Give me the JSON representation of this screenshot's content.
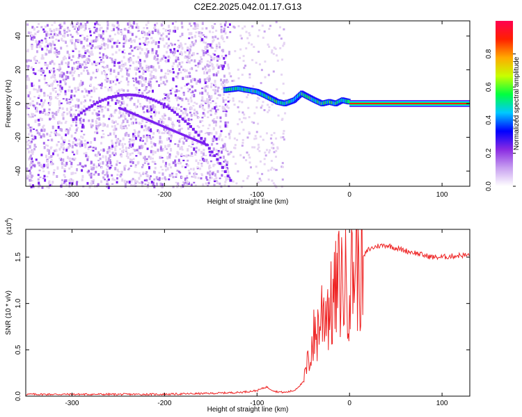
{
  "title": "C2E2.2025.042.01.17.G13",
  "colors": {
    "snr_line": "#ee2222",
    "axis": "#000000",
    "colormap": [
      "#f4eef8",
      "#e6d5f3",
      "#c9a6ee",
      "#a566ec",
      "#7a1ff0",
      "#1a10ff",
      "#00c8ff",
      "#00ff60",
      "#c8ff00",
      "#ffb000",
      "#ff2000",
      "#ff0040"
    ]
  },
  "chart_data": [
    {
      "type": "heatmap",
      "xlabel": "Height of straight line (km)",
      "ylabel": "Frequency (Hz)",
      "xlim": [
        -350,
        130
      ],
      "ylim": [
        -49,
        49
      ],
      "xticks": [
        -300,
        -200,
        -100,
        0,
        100
      ],
      "yticks": [
        -40,
        -20,
        0,
        20,
        40
      ],
      "colorbar": {
        "label": "Normalized spectral amplitude",
        "range": [
          0,
          1
        ],
        "ticks": [
          "0.0",
          "0.2",
          "0.4",
          "0.6",
          "0.8"
        ]
      },
      "features": {
        "noise_region_x": [
          -350,
          -130
        ],
        "sparse_region_x": [
          -130,
          -70
        ],
        "signal_track": [
          [
            -135,
            8
          ],
          [
            -120,
            9
          ],
          [
            -110,
            8
          ],
          [
            -100,
            7
          ],
          [
            -92,
            5
          ],
          [
            -85,
            3
          ],
          [
            -78,
            1
          ],
          [
            -70,
            0
          ],
          [
            -60,
            2
          ],
          [
            -52,
            6
          ],
          [
            -45,
            4
          ],
          [
            -38,
            2
          ],
          [
            -30,
            0
          ],
          [
            -22,
            1
          ],
          [
            -15,
            0
          ],
          [
            -8,
            2
          ],
          [
            0,
            1
          ],
          [
            5,
            0
          ],
          [
            10,
            0
          ],
          [
            130,
            0
          ]
        ],
        "carrier_start_x": 0,
        "carrier_frequency": 0
      }
    },
    {
      "type": "line",
      "xlabel": "Height of straight line (km)",
      "ylabel": "SNR (10 * v/v)",
      "y_multiplier": "(x10",
      "y_multiplier_exp": "4",
      "y_multiplier_close": ")",
      "xlim": [
        -350,
        130
      ],
      "ylim": [
        0,
        1.8
      ],
      "xticks": [
        -300,
        -200,
        -100,
        0,
        100
      ],
      "yticks": [
        "0.0",
        "0.5",
        "1.0",
        "1.5"
      ],
      "series": [
        {
          "x": [
            -350,
            -300,
            -250,
            -200,
            -150,
            -120,
            -100,
            -90,
            -80,
            -70,
            -60,
            -50,
            -45,
            -40,
            -35,
            -30,
            -25,
            -20,
            -15,
            -10,
            -5,
            0,
            5,
            10,
            15,
            20,
            30,
            40,
            50,
            60,
            70,
            80,
            90,
            100,
            110,
            120,
            130
          ],
          "y": [
            0.02,
            0.02,
            0.02,
            0.02,
            0.03,
            0.04,
            0.06,
            0.1,
            0.05,
            0.04,
            0.06,
            0.15,
            0.35,
            0.6,
            0.7,
            0.9,
            1.0,
            0.95,
            1.1,
            1.25,
            1.2,
            1.3,
            1.4,
            1.45,
            1.5,
            1.58,
            1.62,
            1.63,
            1.6,
            1.57,
            1.55,
            1.52,
            1.5,
            1.5,
            1.51,
            1.52,
            1.52
          ]
        }
      ]
    }
  ]
}
